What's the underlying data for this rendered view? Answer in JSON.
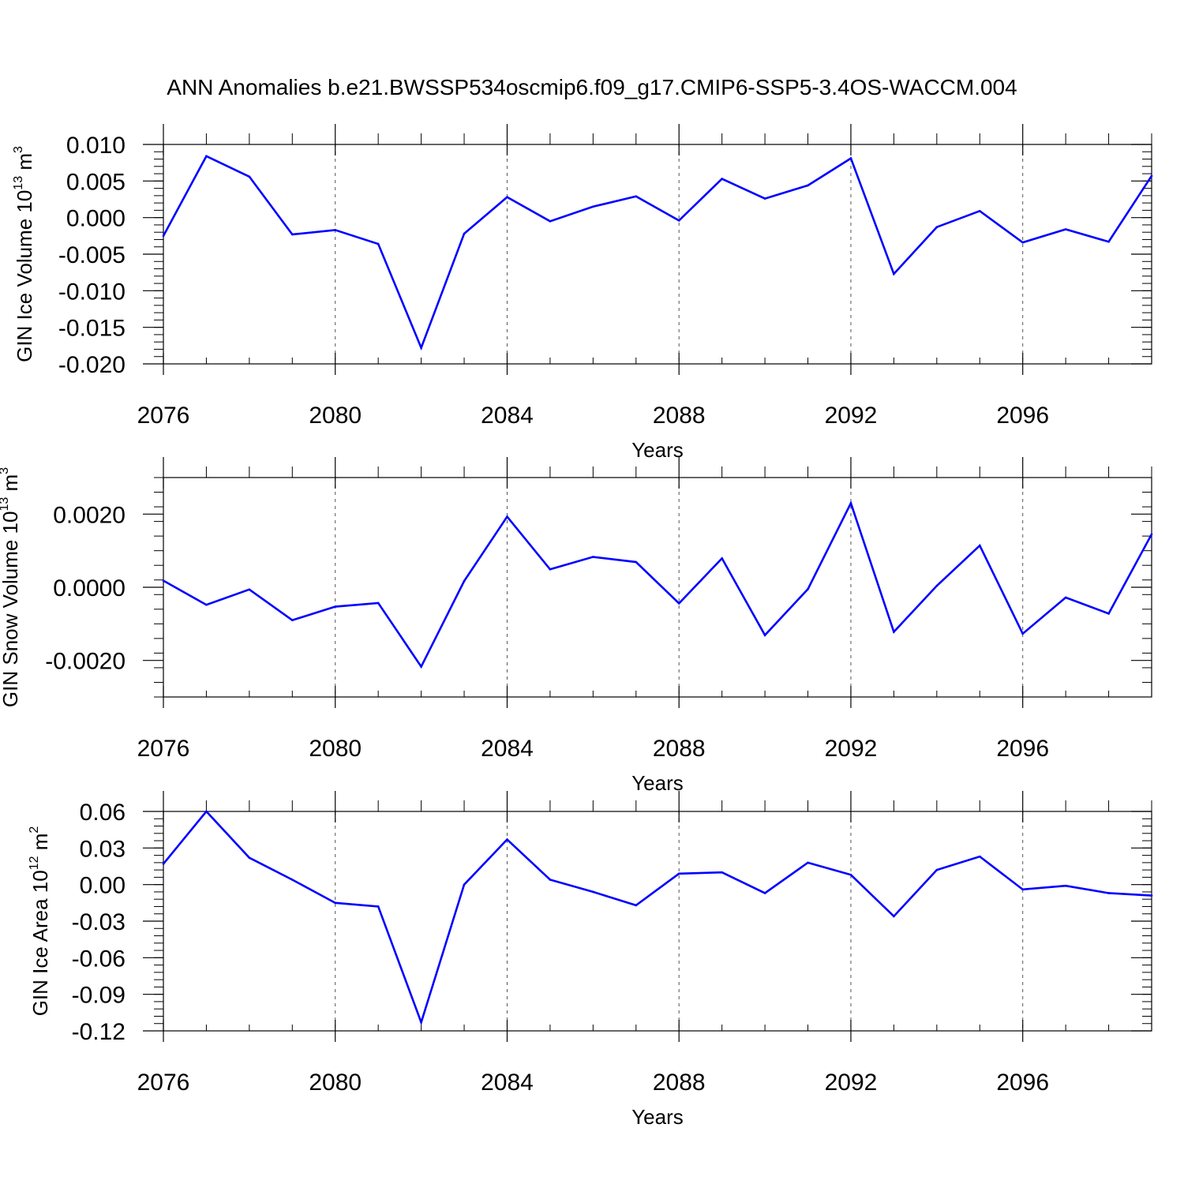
{
  "title": "ANN Anomalies b.e21.BWSSP534oscmip6.f09_g17.CMIP6-SSP5-3.4OS-WACCM.004",
  "colors": {
    "line": "#0000ff",
    "axes": "#000000",
    "grid": "#555555"
  },
  "chart_data": [
    {
      "type": "line",
      "ylabel": "GIN Ice Volume",
      "yunit_base": "10",
      "yunit_exp": "13",
      "yunit_name": "m",
      "yunit_power": "3",
      "xlabel": "Years",
      "xlim": [
        2076,
        2099
      ],
      "ylim": [
        -0.02,
        0.01
      ],
      "yticks": [
        0.01,
        0.005,
        0.0,
        -0.005,
        -0.01,
        -0.015,
        -0.02
      ],
      "ytick_labels": [
        "0.010",
        "0.005",
        "0.000",
        "-0.005",
        "-0.010",
        "-0.015",
        "-0.020"
      ],
      "xticks": [
        2076,
        2080,
        2084,
        2088,
        2092,
        2096
      ],
      "xtick_labels": [
        "2076",
        "2080",
        "2084",
        "2088",
        "2092",
        "2096"
      ],
      "x": [
        2076,
        2077,
        2078,
        2079,
        2080,
        2081,
        2082,
        2083,
        2084,
        2085,
        2086,
        2087,
        2088,
        2089,
        2090,
        2091,
        2092,
        2093,
        2094,
        2095,
        2096,
        2097,
        2098,
        2099
      ],
      "values": [
        -0.0025,
        0.0084,
        0.0056,
        -0.0023,
        -0.0017,
        -0.0036,
        -0.0178,
        -0.0022,
        0.0028,
        -0.0005,
        0.0015,
        0.0029,
        -0.0004,
        0.0053,
        0.0026,
        0.0044,
        0.0081,
        -0.0077,
        -0.0013,
        0.0009,
        -0.0034,
        -0.0016,
        -0.0033,
        0.0057
      ]
    },
    {
      "type": "line",
      "ylabel": "GIN Snow Volume",
      "yunit_base": "10",
      "yunit_exp": "13",
      "yunit_name": "m",
      "yunit_power": "3",
      "xlabel": "Years",
      "xlim": [
        2076,
        2099
      ],
      "ylim": [
        -0.003,
        0.003
      ],
      "yticks": [
        0.002,
        0.0,
        -0.002
      ],
      "ytick_labels": [
        "0.0020",
        "0.0000",
        "-0.0020"
      ],
      "xticks": [
        2076,
        2080,
        2084,
        2088,
        2092,
        2096
      ],
      "xtick_labels": [
        "2076",
        "2080",
        "2084",
        "2088",
        "2092",
        "2096"
      ],
      "x": [
        2076,
        2077,
        2078,
        2079,
        2080,
        2081,
        2082,
        2083,
        2084,
        2085,
        2086,
        2087,
        2088,
        2089,
        2090,
        2091,
        2092,
        2093,
        2094,
        2095,
        2096,
        2097,
        2098,
        2099
      ],
      "values": [
        0.00018,
        -0.00048,
        -6e-05,
        -0.0009,
        -0.00053,
        -0.00043,
        -0.00217,
        0.00017,
        0.00193,
        0.00049,
        0.00083,
        0.00069,
        -0.00044,
        0.00079,
        -0.00131,
        -5e-05,
        0.0023,
        -0.00122,
        4e-05,
        0.00114,
        -0.00127,
        -0.00028,
        -0.00072,
        0.00145
      ]
    },
    {
      "type": "line",
      "ylabel": "GIN Ice Area",
      "yunit_base": "10",
      "yunit_exp": "12",
      "yunit_name": "m",
      "yunit_power": "2",
      "xlabel": "Years",
      "xlim": [
        2076,
        2099
      ],
      "ylim": [
        -0.12,
        0.06
      ],
      "yticks": [
        0.06,
        0.03,
        0.0,
        -0.03,
        -0.06,
        -0.09,
        -0.12
      ],
      "ytick_labels": [
        "0.06",
        "0.03",
        "0.00",
        "-0.03",
        "-0.06",
        "-0.09",
        "-0.12"
      ],
      "xticks": [
        2076,
        2080,
        2084,
        2088,
        2092,
        2096
      ],
      "xtick_labels": [
        "2076",
        "2080",
        "2084",
        "2088",
        "2092",
        "2096"
      ],
      "x": [
        2076,
        2077,
        2078,
        2079,
        2080,
        2081,
        2082,
        2083,
        2084,
        2085,
        2086,
        2087,
        2088,
        2089,
        2090,
        2091,
        2092,
        2093,
        2094,
        2095,
        2096,
        2097,
        2098,
        2099
      ],
      "values": [
        0.017,
        0.06,
        0.022,
        0.004,
        -0.015,
        -0.018,
        -0.113,
        0.0,
        0.037,
        0.004,
        -0.006,
        -0.017,
        0.009,
        0.01,
        -0.007,
        0.018,
        0.008,
        -0.026,
        0.012,
        0.023,
        -0.004,
        -0.001,
        -0.007,
        -0.009
      ]
    }
  ]
}
